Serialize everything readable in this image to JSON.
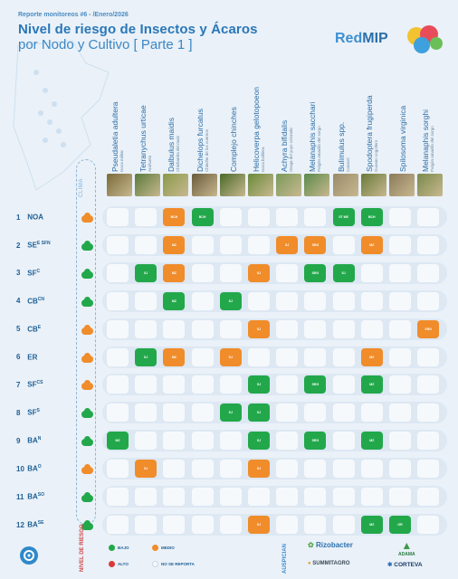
{
  "header": {
    "subtitle": "Reporte monitoreos #6 - /Enero/2026",
    "title_line1": "Nivel de riesgo de Insectos y Ácaros",
    "title_line2": "por Nodo y Cultivo [ Parte 1 ]",
    "brand_a": "Red",
    "brand_b": "MIP"
  },
  "clima_label": "CLIMA",
  "species": [
    {
      "name": "Pseudaletia adultera",
      "common": "Isoca militar"
    },
    {
      "name": "Tetranychus urticae",
      "common": "Arañuela"
    },
    {
      "name": "Dalbulus maidis",
      "common": "Chicharrita del maíz"
    },
    {
      "name": "Dichelops furcatus",
      "common": "Chinche de los cuernos"
    },
    {
      "name": "Complejo chinches",
      "common": ""
    },
    {
      "name": "Helicoverpa gelotopoeon",
      "common": "Isoca bolillera"
    },
    {
      "name": "Achyra bifidalis",
      "common": "Oruga del yuyo colorado"
    },
    {
      "name": "Melanaphis sacchari",
      "common": "Pulgón amarillo del sorgo"
    },
    {
      "name": "Bulimulus spp.",
      "common": "Caracol"
    },
    {
      "name": "Spodoptera frugiperda",
      "common": "Gusano cogollero"
    },
    {
      "name": "Spilosoma virginica",
      "common": ""
    },
    {
      "name": "Melanaphis sorghi",
      "common": "Pulgón amarillo del sorgo"
    }
  ],
  "rows": [
    {
      "num": "1",
      "node": "NOA",
      "sup": "",
      "clima": "orange",
      "cells": [
        "",
        "",
        "m:BCH",
        "b:BCH",
        "",
        "",
        "",
        "",
        "b:ST ME",
        "b:BCH",
        "",
        ""
      ]
    },
    {
      "num": "2",
      "node": "SE",
      "sup": "E SF",
      "node2": "N",
      "clima": "green",
      "cells": [
        "",
        "",
        "m:MZ",
        "",
        "",
        "",
        "m:SJ",
        "m:SRG",
        "",
        "m:MZ",
        "",
        ""
      ]
    },
    {
      "num": "3",
      "node": "SF",
      "sup": "C",
      "clima": "green",
      "cells": [
        "",
        "b:SJ",
        "m:MZ",
        "",
        "",
        "m:SJ",
        "",
        "b:SRG",
        "b:SJ",
        "",
        "",
        ""
      ]
    },
    {
      "num": "4",
      "node": "CB",
      "sup": "CN",
      "clima": "green",
      "cells": [
        "",
        "",
        "b:MZ",
        "",
        "b:SJ",
        "",
        "",
        "",
        "",
        "",
        "",
        ""
      ]
    },
    {
      "num": "5",
      "node": "CB",
      "sup": "E",
      "clima": "orange",
      "cells": [
        "",
        "",
        "",
        "",
        "",
        "m:SJ",
        "",
        "",
        "",
        "",
        "",
        "m:SRG"
      ]
    },
    {
      "num": "6",
      "node": "ER",
      "sup": "",
      "clima": "orange",
      "cells": [
        "",
        "b:SJ",
        "m:MZ",
        "",
        "m:SJ",
        "",
        "",
        "",
        "",
        "m:MZ",
        "",
        ""
      ]
    },
    {
      "num": "7",
      "node": "SF",
      "sup": "CS",
      "clima": "orange",
      "cells": [
        "",
        "",
        "",
        "",
        "",
        "b:SJ",
        "",
        "b:SRG",
        "",
        "b:MZ",
        "",
        ""
      ]
    },
    {
      "num": "8",
      "node": "SF",
      "sup": "S",
      "clima": "green",
      "cells": [
        "",
        "",
        "",
        "",
        "b:SJ",
        "b:SJ",
        "",
        "",
        "",
        "",
        "",
        ""
      ]
    },
    {
      "num": "9",
      "node": "BA",
      "sup": "N",
      "clima": "green",
      "cells": [
        "b:MZ",
        "",
        "",
        "",
        "",
        "b:SJ",
        "",
        "b:SRG",
        "",
        "b:MZ",
        "",
        ""
      ]
    },
    {
      "num": "10",
      "node": "BA",
      "sup": "O",
      "clima": "orange",
      "cells": [
        "",
        "m:SJ",
        "",
        "",
        "",
        "m:SJ",
        "",
        "",
        "",
        "",
        "",
        ""
      ]
    },
    {
      "num": "11",
      "node": "BA",
      "sup": "SO",
      "clima": "green",
      "cells": [
        "",
        "",
        "",
        "",
        "",
        "",
        "",
        "",
        "",
        "",
        "",
        ""
      ]
    },
    {
      "num": "12",
      "node": "BA",
      "sup": "SE",
      "clima": "green",
      "cells": [
        "",
        "",
        "",
        "",
        "",
        "m:SJ",
        "",
        "",
        "",
        "b:MZ",
        "b:GR",
        ""
      ]
    }
  ],
  "legend": {
    "side_label": "NIVEL DE RIESGO",
    "bajo": "BAJO",
    "medio": "MEDIO",
    "alto": "ALTO",
    "no_reporta": "NO SE REPORTA",
    "colors": {
      "bajo": "#22a84a",
      "medio": "#f08c2a",
      "alto": "#d93a3a",
      "no_reporta": "#f6f9fc"
    }
  },
  "sponsors": {
    "label": "AUSPICIAN",
    "s1": "Rizobacter",
    "s2": "ADAMA",
    "s3": "SUMMITAGRO",
    "s4": "CORTEVA"
  }
}
